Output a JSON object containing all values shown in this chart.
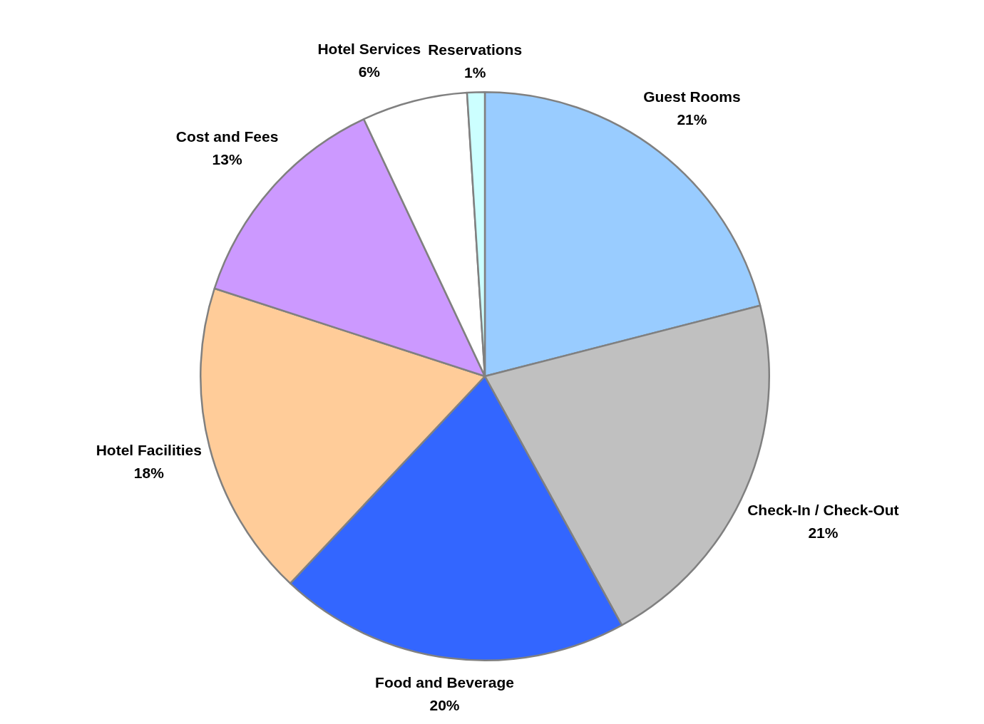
{
  "chart_data": {
    "type": "pie",
    "categories": [
      "Guest Rooms",
      "Check-In / Check-Out",
      "Food and Beverage",
      "Hotel Facilities",
      "Cost and Fees",
      "Hotel Services",
      "Reservations"
    ],
    "values": [
      21,
      21,
      20,
      18,
      13,
      6,
      1
    ],
    "value_labels": [
      "21%",
      "21%",
      "20%",
      "18%",
      "13%",
      "6%",
      "1%"
    ],
    "colors": [
      "#99ccff",
      "#c0c0c0",
      "#3366ff",
      "#ffcc99",
      "#cc99ff",
      "#ffffff",
      "#ccffff"
    ],
    "legend": false
  }
}
